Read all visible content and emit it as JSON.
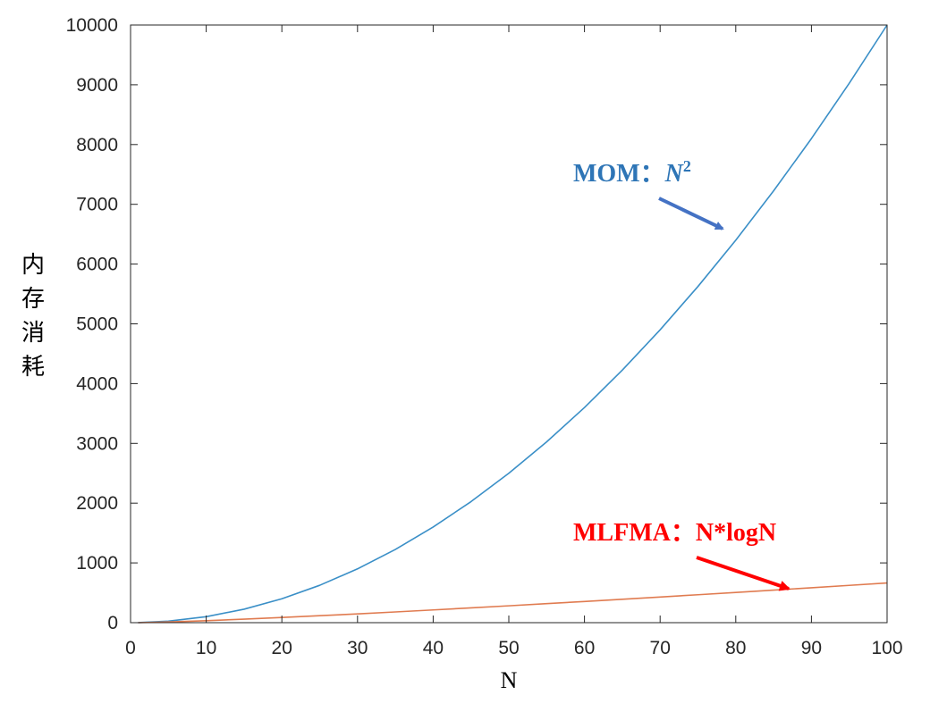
{
  "chart_data": {
    "type": "line",
    "xlabel": "N",
    "ylabel": "内存消耗",
    "xlim": [
      0,
      100
    ],
    "ylim": [
      0,
      10000
    ],
    "xticks": [
      0,
      10,
      20,
      30,
      40,
      50,
      60,
      70,
      80,
      90,
      100
    ],
    "yticks": [
      0,
      1000,
      2000,
      3000,
      4000,
      5000,
      6000,
      7000,
      8000,
      9000,
      10000
    ],
    "grid": false,
    "series": [
      {
        "name": "MOM：N2",
        "formula": "N^2",
        "color": "#3a8fc7",
        "x": [
          1,
          5,
          10,
          15,
          20,
          25,
          30,
          35,
          40,
          45,
          50,
          55,
          60,
          65,
          70,
          75,
          80,
          85,
          90,
          95,
          100
        ],
        "y": [
          1,
          25,
          100,
          225,
          400,
          625,
          900,
          1225,
          1600,
          2025,
          2500,
          3025,
          3600,
          4225,
          4900,
          5625,
          6400,
          7225,
          8100,
          9025,
          10000
        ]
      },
      {
        "name": "MLFMA：N*logN",
        "formula": "N*log2(N)",
        "color": "#e07b50",
        "x": [
          1,
          5,
          10,
          15,
          20,
          25,
          30,
          35,
          40,
          45,
          50,
          55,
          60,
          65,
          70,
          75,
          80,
          85,
          90,
          95,
          100
        ],
        "y": [
          0,
          11.6,
          33.2,
          58.6,
          86.4,
          116.1,
          147.2,
          179.5,
          212.9,
          247.1,
          282.2,
          318,
          354.4,
          391.4,
          429,
          467.2,
          505.8,
          544.8,
          584.2,
          624.1,
          664.4
        ]
      }
    ],
    "annotations": [
      {
        "label": "MOM：",
        "math_base": "N",
        "math_sup": "2",
        "color": "#2e75b6",
        "arrow_color": "#4472c4"
      },
      {
        "label": "MLFMA：N*logN",
        "color": "#ff0000",
        "arrow_color": "#ff0000"
      }
    ]
  }
}
